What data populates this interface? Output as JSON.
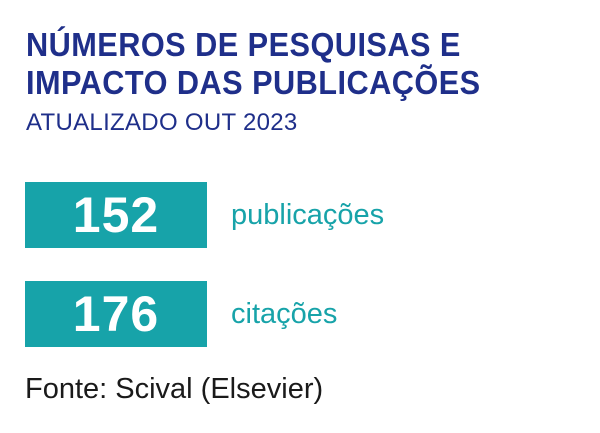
{
  "header": {
    "title_line1": "NÚMEROS DE PESQUISAS E",
    "title_line2": "IMPACTO DAS PUBLICAÇÕES",
    "subtitle": "ATUALIZADO OUT 2023"
  },
  "stats": [
    {
      "value": "152",
      "label": "publicações"
    },
    {
      "value": "176",
      "label": "citações"
    }
  ],
  "source": "Fonte: Scival (Elsevier)",
  "colors": {
    "title": "#1f2f8a",
    "accent": "#17a3a9",
    "source_text": "#1a1a1a",
    "background": "#ffffff"
  }
}
